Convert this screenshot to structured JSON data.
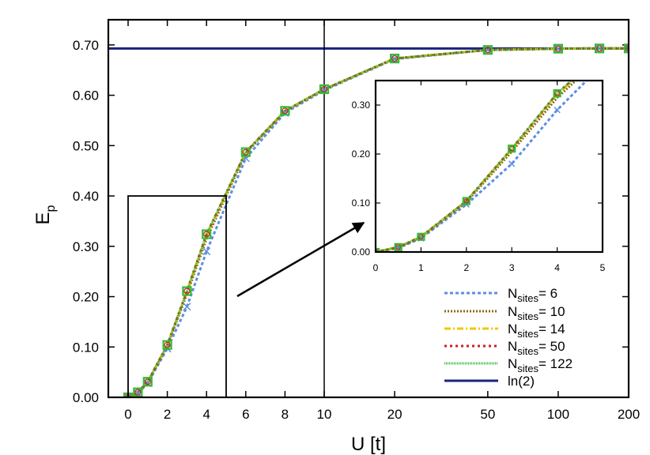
{
  "chart_data": {
    "type": "line",
    "title": "",
    "xlabel": "U [t]",
    "ylabel_main": "E",
    "ylabel_sub": "p",
    "x_ticks": [
      "0",
      "2",
      "4",
      "6",
      "8",
      "10",
      "20",
      "50",
      "100",
      "200"
    ],
    "y_ticks": [
      "0.00",
      "0.10",
      "0.20",
      "0.30",
      "0.40",
      "0.50",
      "0.60",
      "0.70"
    ],
    "ylim": [
      0,
      0.75
    ],
    "x_axis_note": "piecewise axis: linear from 0 to 10, logarithmic from 10 to 200",
    "reference_line": {
      "name": "ln(2)",
      "value": 0.693,
      "color": "#1a237e"
    },
    "series": [
      {
        "label_main": "N",
        "label_sub": "sites",
        "label_value": "= 6",
        "color": "#5b8fe3",
        "dash": "4,3",
        "marker": "x",
        "x": [
          0,
          0.5,
          1,
          2,
          3,
          4,
          6,
          8,
          10,
          20,
          50,
          100,
          150,
          200
        ],
        "y": [
          0,
          0.008,
          0.028,
          0.097,
          0.18,
          0.29,
          0.475,
          0.565,
          0.61,
          0.672,
          0.69,
          0.6925,
          0.693,
          0.693
        ]
      },
      {
        "label_main": "N",
        "label_sub": "sites",
        "label_value": "= 10",
        "color": "#8b6914",
        "dash": "2,2",
        "marker": "none",
        "x": [
          0,
          0.5,
          1,
          2,
          3,
          4,
          6,
          8,
          10,
          20,
          50,
          100,
          150,
          200
        ],
        "y": [
          0,
          0.009,
          0.03,
          0.102,
          0.205,
          0.315,
          0.485,
          0.568,
          0.612,
          0.673,
          0.69,
          0.6925,
          0.693,
          0.693
        ]
      },
      {
        "label_main": "N",
        "label_sub": "sites",
        "label_value": "= 14",
        "color": "#f0c800",
        "dash": "8,3,2,3",
        "marker": "none",
        "x": [
          0,
          0.5,
          1,
          2,
          3,
          4,
          6,
          8,
          10,
          20,
          50,
          100,
          150,
          200
        ],
        "y": [
          0,
          0.01,
          0.031,
          0.104,
          0.21,
          0.322,
          0.487,
          0.569,
          0.612,
          0.673,
          0.69,
          0.6925,
          0.693,
          0.693
        ]
      },
      {
        "label_main": "N",
        "label_sub": "sites",
        "label_value": "= 50",
        "color": "#cc1f1f",
        "dash": "3,4",
        "marker": "circle",
        "x": [
          0,
          0.5,
          1,
          2,
          3,
          4,
          6,
          8,
          10,
          20,
          50,
          100,
          150,
          200
        ],
        "y": [
          0,
          0.01,
          0.031,
          0.104,
          0.211,
          0.324,
          0.487,
          0.569,
          0.612,
          0.673,
          0.69,
          0.6925,
          0.693,
          0.693
        ]
      },
      {
        "label_main": "N",
        "label_sub": "sites",
        "label_value": "= 122",
        "color": "#33bb33",
        "dash": "1,1",
        "marker": "square",
        "x": [
          0,
          0.5,
          1,
          2,
          3,
          4,
          6,
          8,
          10,
          20,
          50,
          100,
          150,
          200
        ],
        "y": [
          0,
          0.01,
          0.031,
          0.104,
          0.211,
          0.324,
          0.487,
          0.569,
          0.612,
          0.673,
          0.69,
          0.6925,
          0.693,
          0.693
        ]
      }
    ],
    "inset": {
      "xlim": [
        0,
        5
      ],
      "ylim": [
        0,
        0.35
      ],
      "x_ticks": [
        "0",
        "1",
        "2",
        "3",
        "4",
        "5"
      ],
      "y_ticks": [
        "0.00",
        "0.10",
        "0.20",
        "0.30"
      ]
    },
    "zoom_region": {
      "xlim": [
        0,
        5
      ],
      "ylim": [
        0,
        0.4
      ]
    }
  }
}
